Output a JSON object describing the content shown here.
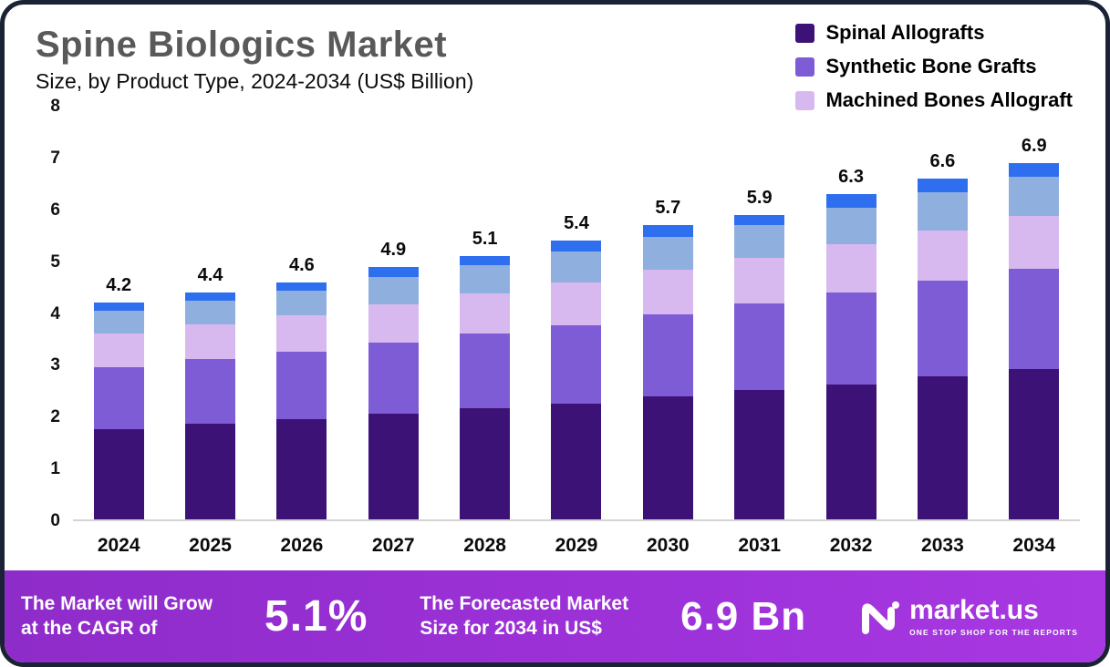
{
  "header": {
    "title": "Spine Biologics Market",
    "subtitle": "Size, by Product Type, 2024-2034 (US$ Billion)"
  },
  "legend": [
    {
      "label": "Spinal Allografts",
      "color": "#3d1277"
    },
    {
      "label": "Synthetic Bone Grafts",
      "color": "#7e5cd6"
    },
    {
      "label": "Machined Bones Allograft",
      "color": "#d7b9f0"
    }
  ],
  "chart_data": {
    "type": "bar",
    "stacked": true,
    "title": "Spine Biologics Market Size, by Product Type, 2024-2034 (US$ Billion)",
    "categories": [
      "2024",
      "2025",
      "2026",
      "2027",
      "2028",
      "2029",
      "2030",
      "2031",
      "2032",
      "2033",
      "2034"
    ],
    "totals": [
      4.2,
      4.4,
      4.6,
      4.9,
      5.1,
      5.4,
      5.7,
      5.9,
      6.3,
      6.6,
      6.9
    ],
    "series": [
      {
        "name": "Spinal Allografts",
        "color": "#3d1277",
        "values": [
          1.75,
          1.85,
          1.95,
          2.05,
          2.15,
          2.25,
          2.38,
          2.5,
          2.62,
          2.77,
          2.92
        ]
      },
      {
        "name": "Synthetic Bone Grafts",
        "color": "#7e5cd6",
        "values": [
          1.2,
          1.25,
          1.3,
          1.38,
          1.45,
          1.52,
          1.6,
          1.68,
          1.77,
          1.85,
          1.93
        ]
      },
      {
        "name": "Machined Bones Allograft",
        "color": "#d7b9f0",
        "values": [
          0.65,
          0.68,
          0.7,
          0.74,
          0.78,
          0.82,
          0.86,
          0.88,
          0.95,
          0.98,
          1.03
        ]
      },
      {
        "name": "Unlabeled segment (light blue)",
        "color": "#8fb0df",
        "values": [
          0.45,
          0.46,
          0.48,
          0.52,
          0.54,
          0.6,
          0.63,
          0.64,
          0.7,
          0.74,
          0.76
        ]
      },
      {
        "name": "Unlabeled segment (blue)",
        "color": "#2e6ff0",
        "values": [
          0.15,
          0.16,
          0.17,
          0.21,
          0.18,
          0.21,
          0.23,
          0.2,
          0.26,
          0.26,
          0.26
        ]
      }
    ],
    "ylim": [
      0,
      8
    ],
    "yticks": [
      0,
      1,
      2,
      3,
      4,
      5,
      6,
      7,
      8
    ],
    "grid": false,
    "legend_position": "top-right"
  },
  "footer": {
    "cagr_line1": "The Market will Grow",
    "cagr_line2": "at the CAGR of",
    "cagr_value": "5.1%",
    "forecast_line1": "The Forecasted Market",
    "forecast_line2": "Size for 2034 in US$",
    "forecast_value": "6.9 Bn",
    "brand": "market.us",
    "brand_tagline": "ONE STOP SHOP FOR THE REPORTS"
  }
}
